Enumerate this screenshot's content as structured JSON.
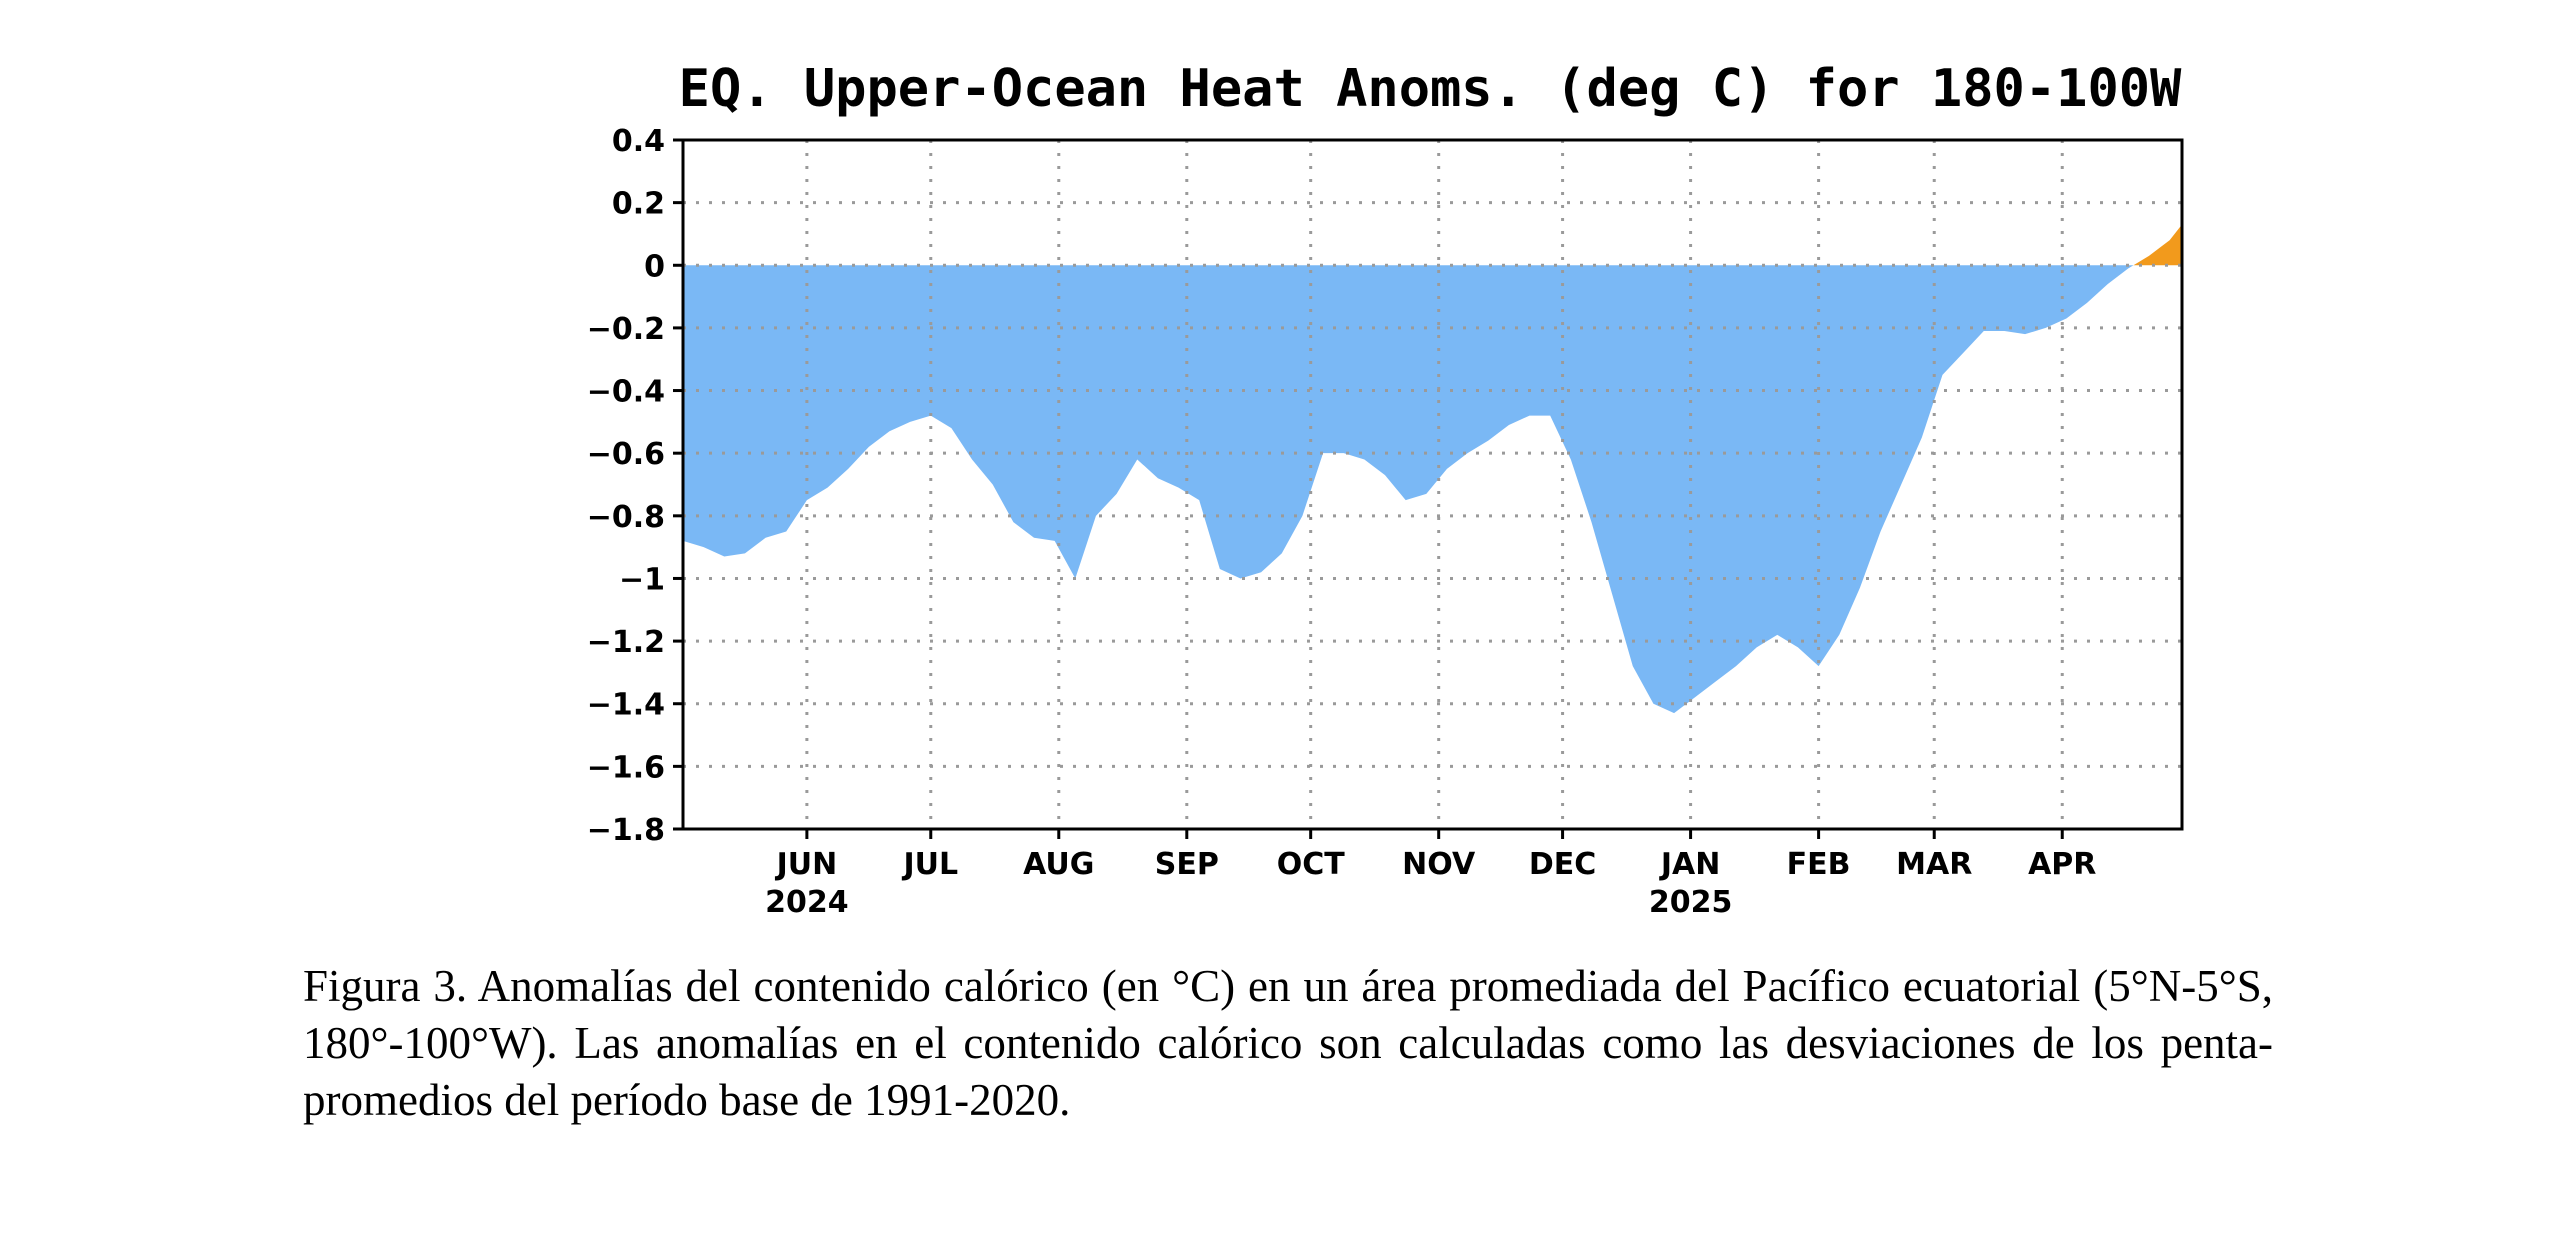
{
  "chart_data": {
    "type": "area",
    "title": "EQ. Upper-Ocean Heat Anoms. (deg C) for 180-100W",
    "xlabel": "",
    "ylabel": "",
    "ylim": [
      -1.8,
      0.4
    ],
    "yticks": [
      0.4,
      0.2,
      0,
      -0.2,
      -0.4,
      -0.6,
      -0.8,
      -1,
      -1.2,
      -1.4,
      -1.6,
      -1.8
    ],
    "ytick_labels": [
      "0.4",
      "0.2",
      "0",
      "−0.2",
      "−0.4",
      "−0.6",
      "−0.8",
      "−1",
      "−1.2",
      "−1.4",
      "−1.6",
      "−1.8"
    ],
    "xlim": [
      "2024-05-02",
      "2025-04-30"
    ],
    "xticks": [
      {
        "date": "2024-06-01",
        "label": "JUN",
        "year": "2024"
      },
      {
        "date": "2024-07-01",
        "label": "JUL",
        "year": ""
      },
      {
        "date": "2024-08-01",
        "label": "AUG",
        "year": ""
      },
      {
        "date": "2024-09-01",
        "label": "SEP",
        "year": ""
      },
      {
        "date": "2024-10-01",
        "label": "OCT",
        "year": ""
      },
      {
        "date": "2024-11-01",
        "label": "NOV",
        "year": ""
      },
      {
        "date": "2024-12-01",
        "label": "DEC",
        "year": ""
      },
      {
        "date": "2025-01-01",
        "label": "JAN",
        "year": "2025"
      },
      {
        "date": "2025-02-01",
        "label": "FEB",
        "year": ""
      },
      {
        "date": "2025-03-01",
        "label": "MAR",
        "year": ""
      },
      {
        "date": "2025-04-01",
        "label": "APR",
        "year": ""
      }
    ],
    "grid": true,
    "colors": {
      "negative": "#7ab8f5",
      "positive": "#f29a1c",
      "grid": "#9a9a9a",
      "frame": "#000000"
    },
    "series": [
      {
        "x": [
          "2024-05-02",
          "2024-05-07",
          "2024-05-12",
          "2024-05-17",
          "2024-05-22",
          "2024-05-27",
          "2024-06-01",
          "2024-06-06",
          "2024-06-11",
          "2024-06-16",
          "2024-06-21",
          "2024-06-26",
          "2024-07-01",
          "2024-07-06",
          "2024-07-11",
          "2024-07-16",
          "2024-07-21",
          "2024-07-26",
          "2024-07-31",
          "2024-08-05",
          "2024-08-10",
          "2024-08-15",
          "2024-08-20",
          "2024-08-25",
          "2024-08-30",
          "2024-09-04",
          "2024-09-09",
          "2024-09-14",
          "2024-09-19",
          "2024-09-24",
          "2024-09-29",
          "2024-10-04",
          "2024-10-09",
          "2024-10-14",
          "2024-10-19",
          "2024-10-24",
          "2024-10-29",
          "2024-11-03",
          "2024-11-08",
          "2024-11-13",
          "2024-11-18",
          "2024-11-23",
          "2024-11-28",
          "2024-12-03",
          "2024-12-08",
          "2024-12-13",
          "2024-12-18",
          "2024-12-23",
          "2024-12-28",
          "2025-01-02",
          "2025-01-07",
          "2025-01-12",
          "2025-01-17",
          "2025-01-22",
          "2025-01-27",
          "2025-02-01",
          "2025-02-06",
          "2025-02-11",
          "2025-02-16",
          "2025-02-21",
          "2025-02-26",
          "2025-03-03",
          "2025-03-08",
          "2025-03-13",
          "2025-03-18",
          "2025-03-23",
          "2025-03-28",
          "2025-04-02",
          "2025-04-07",
          "2025-04-12",
          "2025-04-17",
          "2025-04-22",
          "2025-04-27",
          "2025-04-30"
        ],
        "y": [
          -0.88,
          -0.9,
          -0.93,
          -0.92,
          -0.87,
          -0.85,
          -0.75,
          -0.71,
          -0.65,
          -0.58,
          -0.53,
          -0.5,
          -0.48,
          -0.52,
          -0.62,
          -0.7,
          -0.82,
          -0.87,
          -0.88,
          -1.0,
          -0.8,
          -0.73,
          -0.62,
          -0.68,
          -0.71,
          -0.75,
          -0.97,
          -1.0,
          -0.98,
          -0.92,
          -0.8,
          -0.6,
          -0.6,
          -0.62,
          -0.67,
          -0.75,
          -0.73,
          -0.65,
          -0.6,
          -0.56,
          -0.51,
          -0.48,
          -0.48,
          -0.62,
          -0.82,
          -1.05,
          -1.28,
          -1.4,
          -1.43,
          -1.38,
          -1.33,
          -1.28,
          -1.22,
          -1.18,
          -1.22,
          -1.28,
          -1.18,
          -1.03,
          -0.85,
          -0.7,
          -0.55,
          -0.35,
          -0.28,
          -0.21,
          -0.21,
          -0.22,
          -0.2,
          -0.17,
          -0.12,
          -0.06,
          -0.01,
          0.03,
          0.08,
          0.13
        ]
      }
    ]
  },
  "caption": "Figura 3. Anomalías del contenido calórico (en °C) en un área promediada del Pacífico ecuatorial (5°N-5°S, 180°-100°W). Las anomalías en el contenido calórico son calculadas como las desviaciones de los penta-promedios del período base de 1991-2020."
}
